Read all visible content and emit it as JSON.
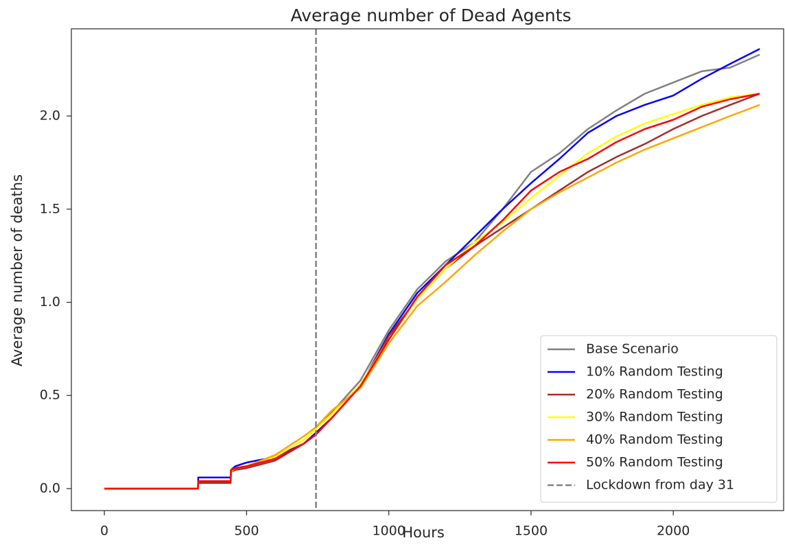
{
  "chart_data": {
    "type": "line",
    "title": "Average number of Dead Agents",
    "x_label": "Hours",
    "y_label": "Average number of deaths",
    "x": [
      0,
      329,
      330,
      444,
      445,
      460,
      500,
      600,
      700,
      744,
      800,
      900,
      1000,
      1100,
      1200,
      1300,
      1400,
      1500,
      1600,
      1700,
      1800,
      1900,
      2000,
      2100,
      2200,
      2304
    ],
    "series": [
      {
        "name": "Base Scenario",
        "color": "#808080",
        "values": [
          0,
          0,
          0.04,
          0.04,
          0.1,
          0.11,
          0.12,
          0.17,
          0.26,
          0.32,
          0.41,
          0.58,
          0.85,
          1.07,
          1.22,
          1.32,
          1.5,
          1.7,
          1.8,
          1.93,
          2.03,
          2.12,
          2.18,
          2.24,
          2.26,
          2.33
        ]
      },
      {
        "name": "10% Random Testing",
        "color": "#0000ff",
        "values": [
          0,
          0,
          0.06,
          0.06,
          0.1,
          0.12,
          0.14,
          0.17,
          0.24,
          0.3,
          0.38,
          0.55,
          0.83,
          1.05,
          1.2,
          1.35,
          1.5,
          1.64,
          1.77,
          1.91,
          2.0,
          2.06,
          2.11,
          2.2,
          2.28,
          2.36
        ]
      },
      {
        "name": "20% Random Testing",
        "color": "#a52a2a",
        "values": [
          0,
          0,
          0.03,
          0.03,
          0.09,
          0.1,
          0.11,
          0.15,
          0.24,
          0.29,
          0.38,
          0.55,
          0.82,
          1.02,
          1.18,
          1.3,
          1.4,
          1.5,
          1.6,
          1.7,
          1.78,
          1.85,
          1.93,
          2.0,
          2.06,
          2.12
        ]
      },
      {
        "name": "30% Random Testing",
        "color": "#ffff00",
        "values": [
          0,
          0,
          0.04,
          0.04,
          0.1,
          0.11,
          0.12,
          0.17,
          0.26,
          0.32,
          0.4,
          0.56,
          0.8,
          1.02,
          1.18,
          1.32,
          1.43,
          1.56,
          1.68,
          1.8,
          1.89,
          1.96,
          2.01,
          2.06,
          2.1,
          2.12
        ]
      },
      {
        "name": "40% Random Testing",
        "color": "#ffa500",
        "values": [
          0,
          0,
          0.04,
          0.04,
          0.09,
          0.11,
          0.12,
          0.18,
          0.28,
          0.33,
          0.42,
          0.54,
          0.78,
          0.98,
          1.11,
          1.25,
          1.38,
          1.5,
          1.59,
          1.67,
          1.75,
          1.82,
          1.88,
          1.94,
          2.0,
          2.06
        ]
      },
      {
        "name": "50% Random Testing",
        "color": "#ff0000",
        "values": [
          0,
          0,
          0.04,
          0.04,
          0.1,
          0.11,
          0.12,
          0.16,
          0.24,
          0.29,
          0.38,
          0.55,
          0.8,
          1.03,
          1.2,
          1.3,
          1.44,
          1.6,
          1.7,
          1.77,
          1.86,
          1.93,
          1.98,
          2.05,
          2.09,
          2.12
        ]
      }
    ],
    "vline": {
      "x": 744,
      "name": "Lockdown from day 31",
      "color": "#808080"
    },
    "xlim": [
      -116,
      2388
    ],
    "ylim": [
      -0.118,
      2.468
    ],
    "xticks": [
      0,
      500,
      1000,
      1500,
      2000
    ],
    "yticks": [
      {
        "value": 0,
        "label": "0.0"
      },
      0.5,
      {
        "value": 1,
        "label": "1.0"
      },
      1.5,
      {
        "value": 2,
        "label": "2.0"
      }
    ],
    "grid": false,
    "legend": "lower right"
  }
}
